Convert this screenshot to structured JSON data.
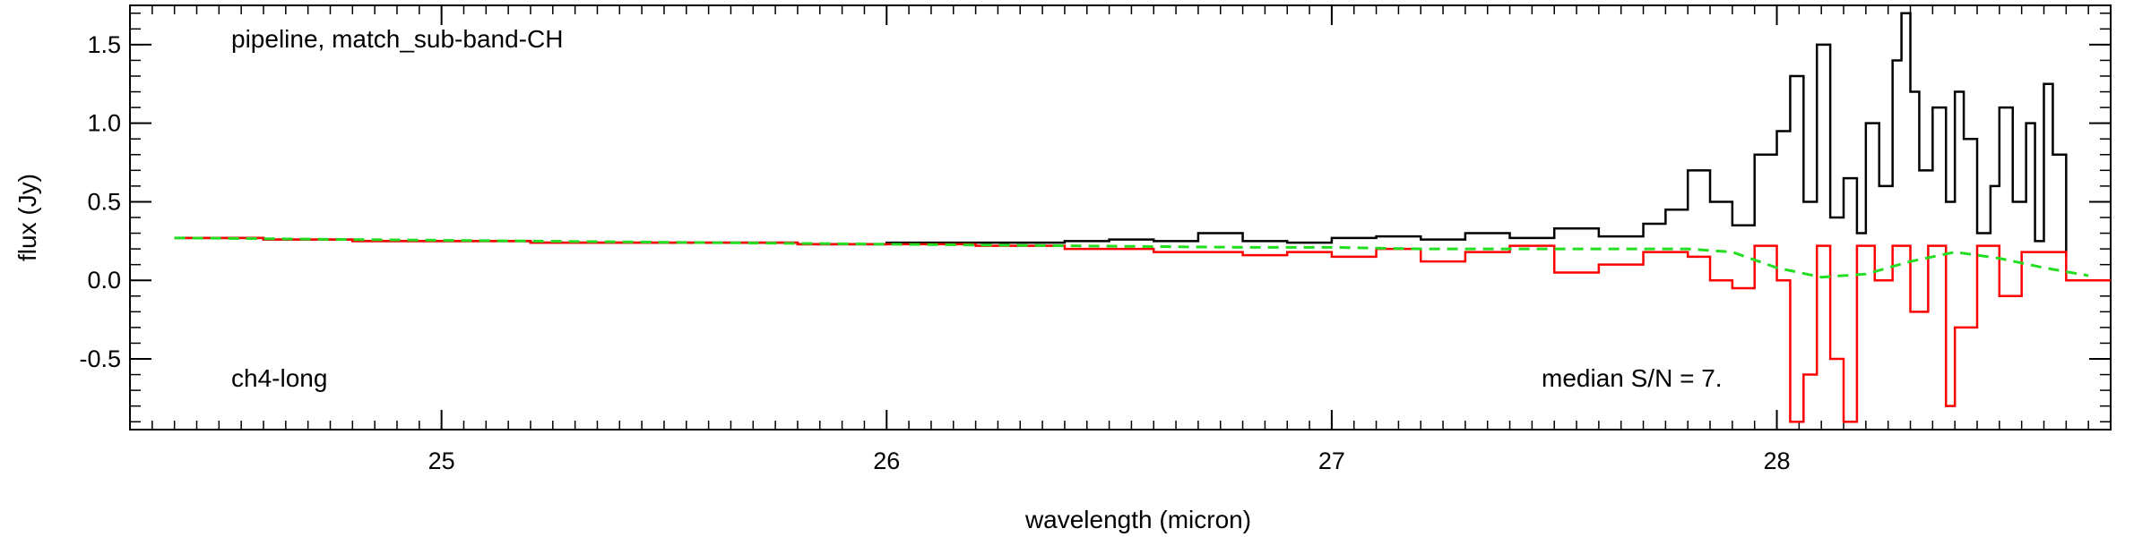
{
  "chart_data": {
    "type": "line",
    "xlabel": "wavelength (micron)",
    "ylabel": "flux (Jy)",
    "xlim": [
      24.3,
      28.75
    ],
    "ylim": [
      -0.95,
      1.75
    ],
    "x_ticks": [
      {
        "value": 25,
        "label": "25"
      },
      {
        "value": 26,
        "label": "26"
      },
      {
        "value": 27,
        "label": "27"
      },
      {
        "value": 28,
        "label": "28"
      }
    ],
    "y_ticks": [
      {
        "value": -0.5,
        "label": "-0.5"
      },
      {
        "value": 0.0,
        "label": "0.0"
      },
      {
        "value": 0.5,
        "label": "0.5"
      },
      {
        "value": 1.0,
        "label": "1.0"
      },
      {
        "value": 1.5,
        "label": "1.5"
      }
    ],
    "annotations": {
      "top_left": "pipeline, match_sub-band-CH",
      "bottom_left": "ch4-long",
      "bottom_right": "median S/N =   7."
    },
    "series": [
      {
        "color": "#000000",
        "style": "steps",
        "x": [
          24.4,
          24.6,
          24.8,
          25.0,
          25.2,
          25.4,
          25.6,
          25.8,
          26.0,
          26.2,
          26.4,
          26.5,
          26.6,
          26.7,
          26.8,
          26.9,
          27.0,
          27.1,
          27.2,
          27.3,
          27.4,
          27.5,
          27.6,
          27.7,
          27.75,
          27.8,
          27.85,
          27.9,
          27.95,
          28.0,
          28.03,
          28.06,
          28.09,
          28.12,
          28.15,
          28.18,
          28.2,
          28.23,
          28.26,
          28.28,
          28.3,
          28.32,
          28.35,
          28.38,
          28.4,
          28.42,
          28.45,
          28.48,
          28.5,
          28.53,
          28.56,
          28.58,
          28.6,
          28.62,
          28.65
        ],
        "y": [
          0.27,
          0.26,
          0.25,
          0.25,
          0.24,
          0.24,
          0.24,
          0.23,
          0.24,
          0.24,
          0.25,
          0.26,
          0.25,
          0.3,
          0.25,
          0.24,
          0.27,
          0.28,
          0.26,
          0.3,
          0.27,
          0.33,
          0.28,
          0.36,
          0.45,
          0.7,
          0.5,
          0.35,
          0.8,
          0.95,
          1.3,
          0.5,
          1.5,
          0.4,
          0.65,
          0.3,
          1.0,
          0.6,
          1.4,
          1.7,
          1.2,
          0.7,
          1.1,
          0.5,
          1.2,
          0.9,
          0.3,
          0.6,
          1.1,
          0.5,
          1.0,
          0.25,
          1.25,
          0.8,
          0.15
        ]
      },
      {
        "color": "#ff0000",
        "style": "steps",
        "x": [
          24.4,
          24.6,
          24.8,
          25.0,
          25.2,
          25.4,
          25.6,
          25.8,
          26.0,
          26.2,
          26.4,
          26.6,
          26.8,
          26.9,
          27.0,
          27.1,
          27.2,
          27.3,
          27.4,
          27.5,
          27.6,
          27.7,
          27.8,
          27.85,
          27.9,
          27.95,
          28.0,
          28.03,
          28.06,
          28.09,
          28.12,
          28.15,
          28.18,
          28.22,
          28.26,
          28.3,
          28.34,
          28.38,
          28.4,
          28.45,
          28.5,
          28.55,
          28.6,
          28.65,
          28.75
        ],
        "y": [
          0.27,
          0.26,
          0.25,
          0.25,
          0.24,
          0.24,
          0.24,
          0.23,
          0.23,
          0.22,
          0.2,
          0.18,
          0.16,
          0.18,
          0.15,
          0.2,
          0.12,
          0.18,
          0.22,
          0.05,
          0.1,
          0.18,
          0.15,
          0.0,
          -0.05,
          0.22,
          0.0,
          -0.9,
          -0.6,
          0.22,
          -0.5,
          -0.9,
          0.22,
          0.0,
          0.22,
          -0.2,
          0.22,
          -0.8,
          -0.3,
          0.22,
          -0.1,
          0.18,
          0.18,
          0.0,
          0.0
        ]
      },
      {
        "color": "#22dd22",
        "style": "dashed",
        "x": [
          24.4,
          24.8,
          25.2,
          25.6,
          26.0,
          26.4,
          26.8,
          27.0,
          27.2,
          27.4,
          27.6,
          27.8,
          27.9,
          28.0,
          28.1,
          28.2,
          28.3,
          28.4,
          28.5,
          28.6,
          28.7
        ],
        "y": [
          0.27,
          0.26,
          0.25,
          0.24,
          0.23,
          0.22,
          0.21,
          0.21,
          0.2,
          0.2,
          0.2,
          0.2,
          0.18,
          0.08,
          0.02,
          0.04,
          0.12,
          0.18,
          0.14,
          0.08,
          0.03
        ]
      }
    ]
  }
}
